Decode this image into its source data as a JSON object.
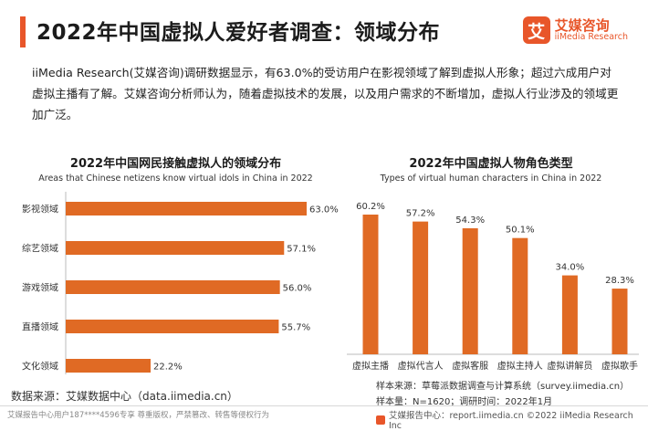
{
  "header": {
    "title": "2022年中国虚拟人爱好者调查：领域分布",
    "logo_mark": "艾",
    "logo_cn": "艾媒咨询",
    "logo_en": "iiMedia Research"
  },
  "intro": "iiMedia Research(艾媒咨询)调研数据显示，有63.0%的受访用户在影视领域了解到虚拟人形象；超过六成用户对虚拟主播有了解。艾媒咨询分析师认为，随着虚拟技术的发展，以及用户需求的不断增加，虚拟人行业涉及的领域更加广泛。",
  "colors": {
    "accent": "#e8562a",
    "bar": "#e06a24"
  },
  "chart_data": [
    {
      "type": "bar",
      "orientation": "horizontal",
      "title": "2022年中国网民接触虚拟人的领域分布",
      "subtitle": "Areas that Chinese netizens know virtual idols in China in 2022",
      "categories": [
        "影视领域",
        "综艺领域",
        "游戏领域",
        "直播领域",
        "文化领域"
      ],
      "values": [
        63.0,
        57.1,
        56.0,
        55.7,
        22.2
      ],
      "labels": [
        "63.0%",
        "57.1%",
        "56.0%",
        "55.7%",
        "22.2%"
      ],
      "xlim": [
        0,
        63.0
      ],
      "grid": false
    },
    {
      "type": "bar",
      "orientation": "vertical",
      "title": "2022年中国虚拟人物角色类型",
      "subtitle": "Types of virtual human characters in China in 2022",
      "categories": [
        "虚拟主播",
        "虚拟代言人",
        "虚拟客服",
        "虚拟主持人",
        "虚拟讲解员",
        "虚拟歌手"
      ],
      "values": [
        60.2,
        57.2,
        54.3,
        50.1,
        34.0,
        28.3
      ],
      "labels": [
        "60.2%",
        "57.2%",
        "54.3%",
        "50.1%",
        "34.0%",
        "28.3%"
      ],
      "ylim": [
        0,
        60.2
      ],
      "grid": false
    }
  ],
  "source": {
    "left": "数据来源：艾媒数据中心（data.iimedia.cn）",
    "sample_source": "样本来源：草莓派数据调查与计算系统（survey.iimedia.cn）",
    "sample_size": "样本量：N=1620；调研时间：2022年1月"
  },
  "footer": {
    "left": "艾媒报告中心用户187****4596专享 尊重版权，严禁篡改、转售等侵权行为",
    "right": "艾媒报告中心：report.iimedia.cn  ©2022 iiMedia Research Inc"
  }
}
